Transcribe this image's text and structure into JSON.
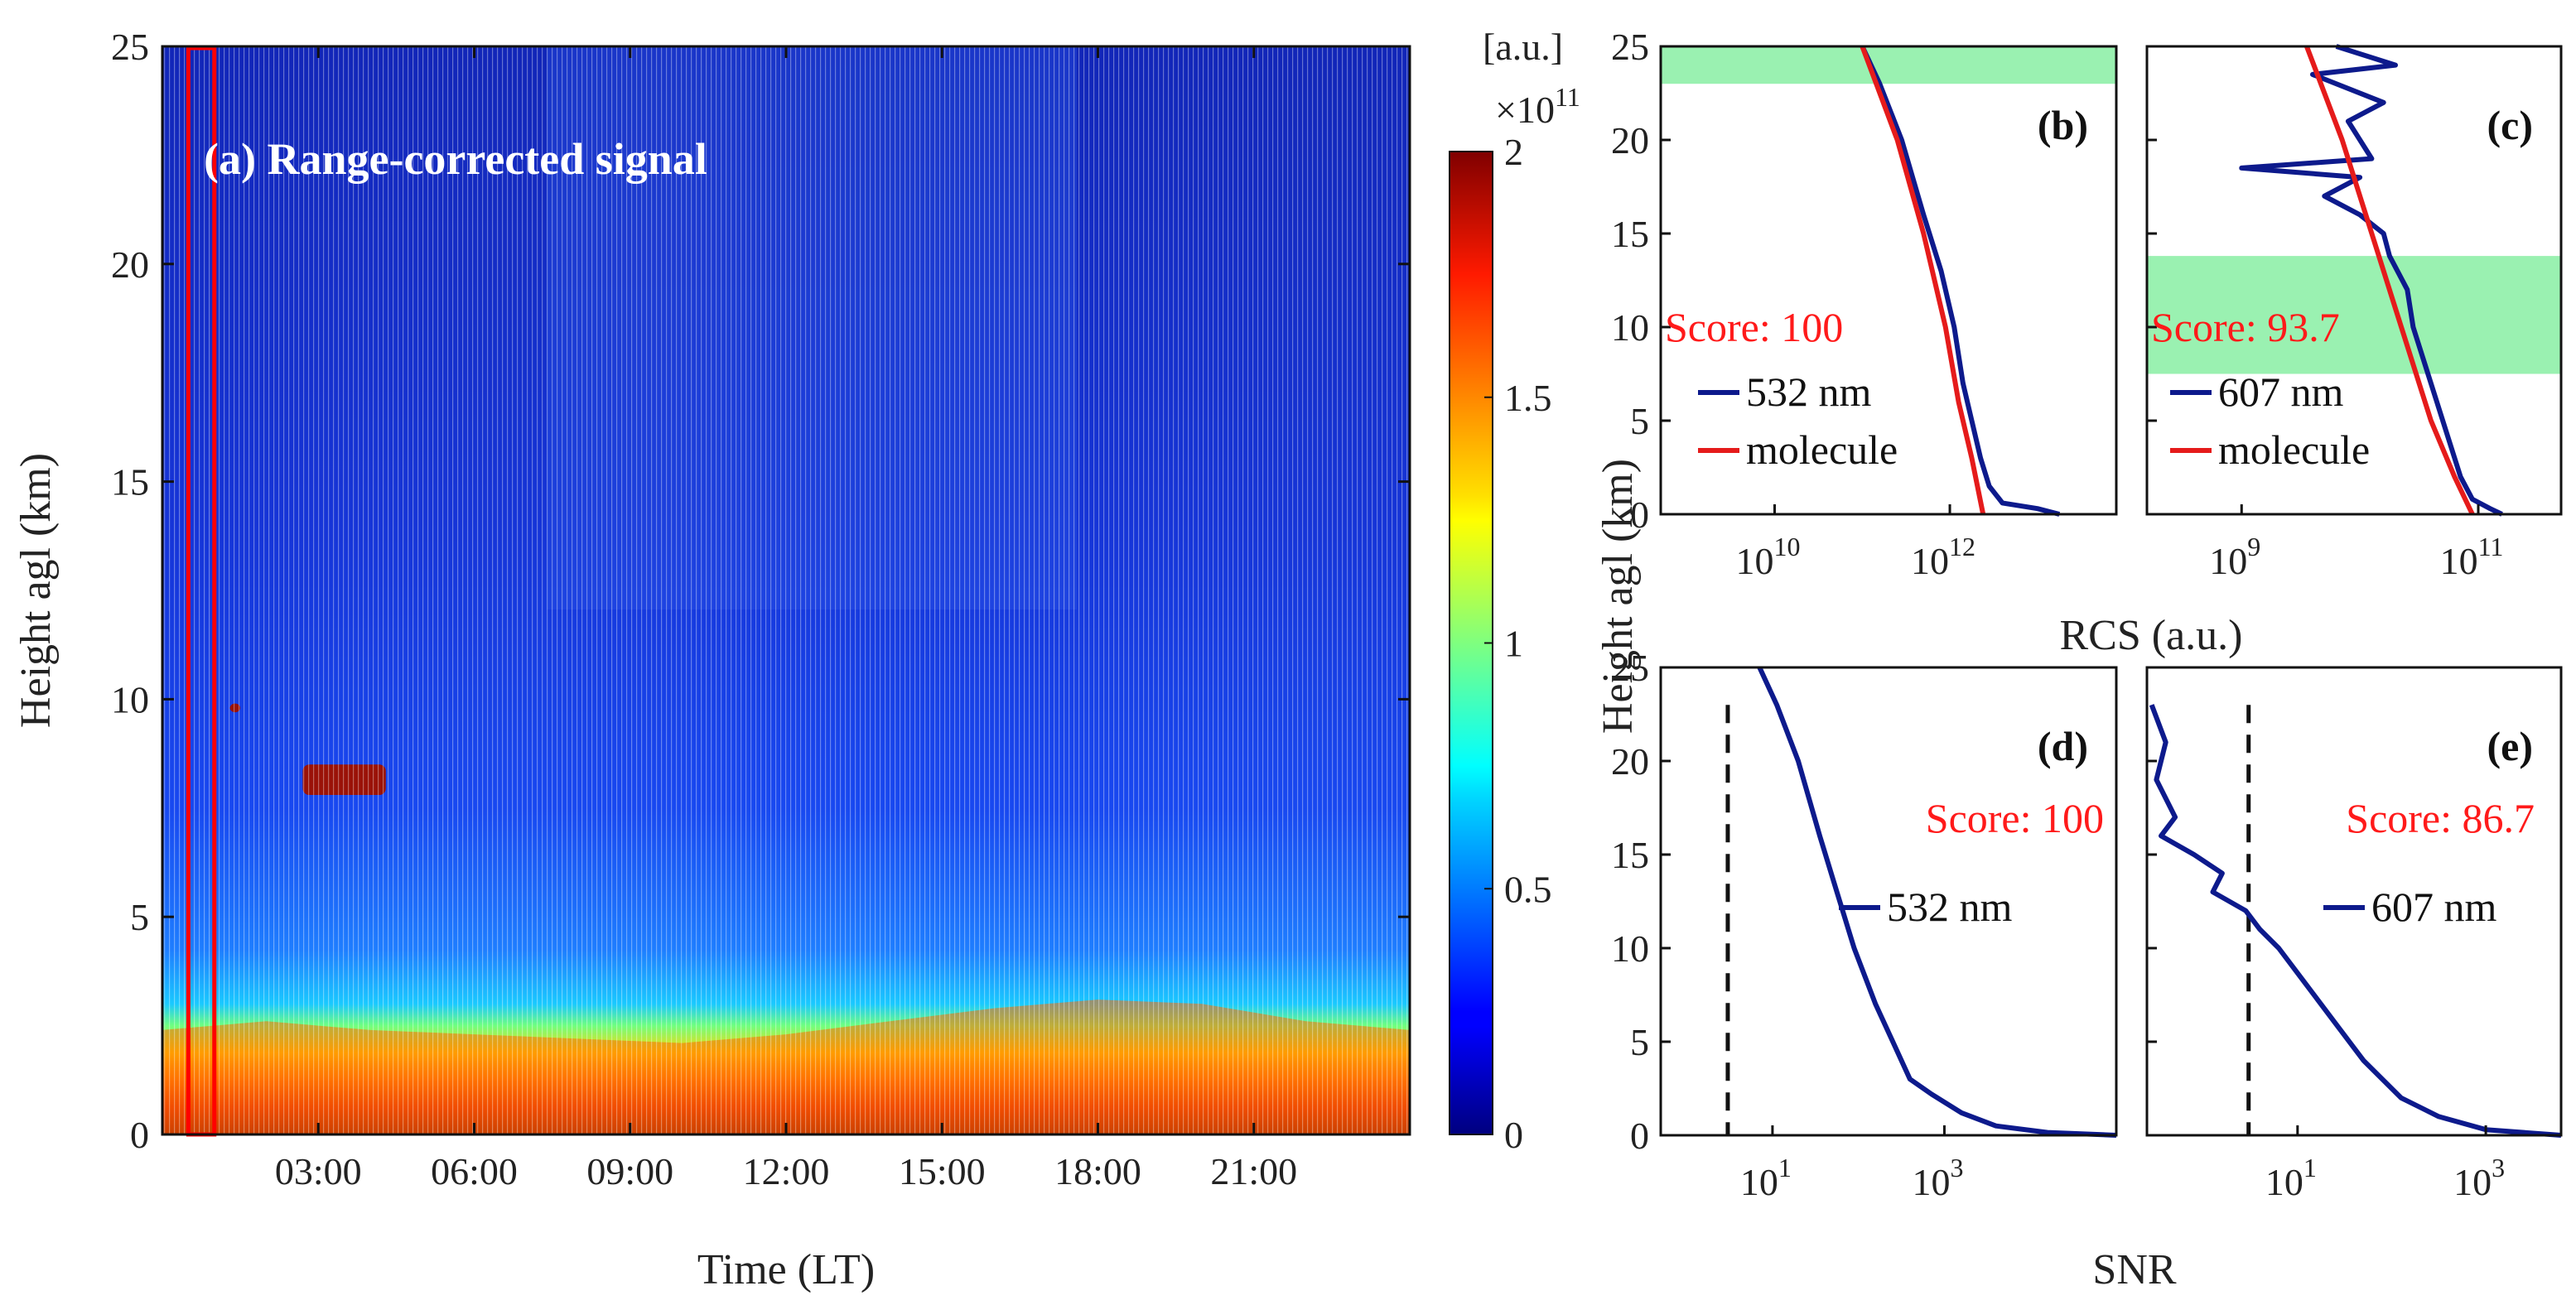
{
  "chart_data": [
    {
      "panel": "a",
      "type": "heatmap",
      "title": "(a) Range-corrected signal",
      "xlabel": "Time (LT)",
      "ylabel": "Height agl (km)",
      "x_ticks": [
        "03:00",
        "06:00",
        "09:00",
        "12:00",
        "15:00",
        "18:00",
        "21:00"
      ],
      "x_tick_hours": [
        3,
        6,
        9,
        12,
        15,
        18,
        21
      ],
      "xlim_hours": [
        0,
        24
      ],
      "ylim": [
        0,
        25
      ],
      "y_ticks": [
        0,
        5,
        10,
        15,
        20,
        25
      ],
      "colorbar": {
        "unit": "[a.u.]",
        "exponent": "×10",
        "exponent_power": "11",
        "tick_values": [
          0,
          0.5,
          1,
          1.5,
          2
        ],
        "tick_labels": [
          "0",
          "0.5",
          "1",
          "1.5",
          "2"
        ],
        "range": [
          0,
          2
        ],
        "colormap": "jet"
      },
      "boundary_layer_top_km": [
        [
          0,
          2.4
        ],
        [
          2,
          2.6
        ],
        [
          4,
          2.4
        ],
        [
          6,
          2.3
        ],
        [
          8,
          2.2
        ],
        [
          10,
          2.1
        ],
        [
          12,
          2.3
        ],
        [
          14,
          2.6
        ],
        [
          16,
          2.9
        ],
        [
          18,
          3.1
        ],
        [
          20,
          3.0
        ],
        [
          22,
          2.6
        ],
        [
          24,
          2.4
        ]
      ],
      "cloud_layers": [
        {
          "start_hour": 2.7,
          "end_hour": 4.3,
          "bottom_km": 7.8,
          "top_km": 8.5
        },
        {
          "start_hour": 1.3,
          "end_hour": 1.5,
          "bottom_km": 9.7,
          "top_km": 9.9
        }
      ],
      "selected_window_hours": [
        0.5,
        1.0
      ],
      "selection_color": "#ff0000"
    },
    {
      "panel": "b",
      "type": "line",
      "label": "(b)",
      "score_text": "Score: 100",
      "xscale": "log",
      "xlim_log10": [
        8.7,
        13.9
      ],
      "x_ticks": [
        {
          "base": "10",
          "exp": "10"
        },
        {
          "base": "10",
          "exp": "12"
        }
      ],
      "x_tick_exps": [
        10,
        12
      ],
      "ylim": [
        0,
        25
      ],
      "y_ticks": [
        0,
        5,
        10,
        15,
        20,
        25
      ],
      "ref_band_km": [
        23,
        25
      ],
      "series": [
        {
          "name": "532 nm",
          "color": "#0d1a8c",
          "points": [
            [
              11.0,
              25
            ],
            [
              11.2,
              23
            ],
            [
              11.45,
              20
            ],
            [
              11.7,
              16
            ],
            [
              11.9,
              13
            ],
            [
              12.05,
              10
            ],
            [
              12.15,
              7
            ],
            [
              12.25,
              5
            ],
            [
              12.35,
              3
            ],
            [
              12.45,
              1.5
            ],
            [
              12.6,
              0.6
            ],
            [
              13.0,
              0.3
            ],
            [
              13.25,
              0
            ]
          ]
        },
        {
          "name": "molecule",
          "color": "#e51b1b",
          "points": [
            [
              11.0,
              25
            ],
            [
              11.4,
              20
            ],
            [
              11.7,
              15
            ],
            [
              11.95,
              10
            ],
            [
              12.1,
              6
            ],
            [
              12.25,
              3
            ],
            [
              12.38,
              0
            ]
          ]
        }
      ],
      "legend": [
        "532 nm",
        "molecule"
      ]
    },
    {
      "panel": "c",
      "type": "line",
      "label": "(c)",
      "score_text": "Score: 93.7",
      "xscale": "log",
      "xlim_log10": [
        8.2,
        11.7
      ],
      "x_ticks": [
        {
          "base": "10",
          "exp": "9"
        },
        {
          "base": "10",
          "exp": "11"
        }
      ],
      "x_tick_exps": [
        9,
        11
      ],
      "ylim": [
        0,
        25
      ],
      "y_ticks": [
        0,
        5,
        10,
        15,
        20,
        25
      ],
      "ref_band_km": [
        7.5,
        13.8
      ],
      "series": [
        {
          "name": "607 nm",
          "color": "#0d1a8c",
          "points": [
            [
              9.8,
              25
            ],
            [
              10.3,
              24
            ],
            [
              9.6,
              23.5
            ],
            [
              10.2,
              22
            ],
            [
              9.9,
              21
            ],
            [
              10.1,
              19
            ],
            [
              9.0,
              18.5
            ],
            [
              10.0,
              18
            ],
            [
              9.7,
              17
            ],
            [
              10.0,
              16
            ],
            [
              10.2,
              15
            ],
            [
              10.25,
              13.8
            ],
            [
              10.4,
              12
            ],
            [
              10.45,
              10
            ],
            [
              10.55,
              8
            ],
            [
              10.65,
              6
            ],
            [
              10.75,
              4
            ],
            [
              10.85,
              2
            ],
            [
              10.95,
              0.8
            ],
            [
              11.1,
              0.3
            ],
            [
              11.2,
              0
            ]
          ]
        },
        {
          "name": "molecule",
          "color": "#e51b1b",
          "points": [
            [
              9.55,
              25
            ],
            [
              9.85,
              20
            ],
            [
              10.1,
              15
            ],
            [
              10.35,
              10
            ],
            [
              10.6,
              5
            ],
            [
              10.8,
              2
            ],
            [
              10.95,
              0
            ]
          ]
        }
      ],
      "legend": [
        "607 nm",
        "molecule"
      ]
    },
    {
      "panel": "d",
      "type": "line",
      "label": "(d)",
      "score_text": "Score: 100",
      "xscale": "log",
      "xlim_log10": [
        -0.3,
        5.0
      ],
      "x_ticks": [
        {
          "base": "10",
          "exp": "1"
        },
        {
          "base": "10",
          "exp": "3"
        }
      ],
      "x_tick_exps": [
        1,
        3
      ],
      "ylim": [
        0,
        25
      ],
      "y_ticks": [
        0,
        5,
        10,
        15,
        20,
        25
      ],
      "threshold_log10": 0.48,
      "series": [
        {
          "name": "532 nm",
          "color": "#0d1a8c",
          "points": [
            [
              0.85,
              25
            ],
            [
              1.05,
              23
            ],
            [
              1.3,
              20
            ],
            [
              1.55,
              16
            ],
            [
              1.75,
              13
            ],
            [
              1.95,
              10
            ],
            [
              2.2,
              7
            ],
            [
              2.4,
              5
            ],
            [
              2.6,
              3
            ],
            [
              2.85,
              2.2
            ],
            [
              3.2,
              1.2
            ],
            [
              3.6,
              0.5
            ],
            [
              4.2,
              0.15
            ],
            [
              5.0,
              0
            ]
          ]
        }
      ],
      "legend": [
        "532 nm"
      ]
    },
    {
      "panel": "e",
      "type": "line",
      "label": "(e)",
      "score_text": "Score: 86.7",
      "xscale": "log",
      "xlim_log10": [
        -0.6,
        3.8
      ],
      "x_ticks": [
        {
          "base": "10",
          "exp": "1"
        },
        {
          "base": "10",
          "exp": "3"
        }
      ],
      "x_tick_exps": [
        1,
        3
      ],
      "ylim": [
        0,
        25
      ],
      "y_ticks": [
        0,
        5,
        10,
        15,
        20,
        25
      ],
      "threshold_log10": 0.48,
      "series": [
        {
          "name": "607 nm",
          "color": "#0d1a8c",
          "points": [
            [
              -0.55,
              23
            ],
            [
              -0.4,
              21
            ],
            [
              -0.5,
              19
            ],
            [
              -0.3,
              17
            ],
            [
              -0.45,
              16
            ],
            [
              -0.1,
              15
            ],
            [
              0.2,
              14
            ],
            [
              0.1,
              13
            ],
            [
              0.45,
              12
            ],
            [
              0.6,
              11
            ],
            [
              0.8,
              10
            ],
            [
              1.1,
              8
            ],
            [
              1.4,
              6
            ],
            [
              1.7,
              4
            ],
            [
              2.1,
              2
            ],
            [
              2.5,
              1
            ],
            [
              3.0,
              0.3
            ],
            [
              3.8,
              0
            ]
          ]
        }
      ],
      "legend": [
        "607 nm"
      ]
    }
  ],
  "shared_labels": {
    "ylabel_right": "Height agl (km)",
    "xlabel_rcs": "RCS (a.u.)",
    "xlabel_snr": "SNR"
  }
}
